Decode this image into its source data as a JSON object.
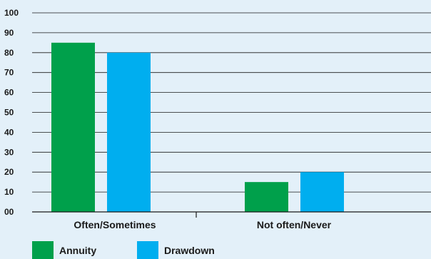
{
  "chart_data": {
    "type": "bar",
    "categories": [
      "Often/Sometimes",
      "Not often/Never"
    ],
    "series": [
      {
        "name": "Annuity",
        "values": [
          85,
          15
        ],
        "color": "#00a04b"
      },
      {
        "name": "Drawdown",
        "values": [
          80,
          20
        ],
        "color": "#00aeef"
      }
    ],
    "yticks": [
      "00",
      "10",
      "20",
      "30",
      "40",
      "50",
      "60",
      "70",
      "80",
      "90",
      "100"
    ],
    "ylim": [
      0,
      100
    ],
    "grid": true,
    "legend_position": "bottom-left",
    "title": "",
    "xlabel": "",
    "ylabel": ""
  }
}
